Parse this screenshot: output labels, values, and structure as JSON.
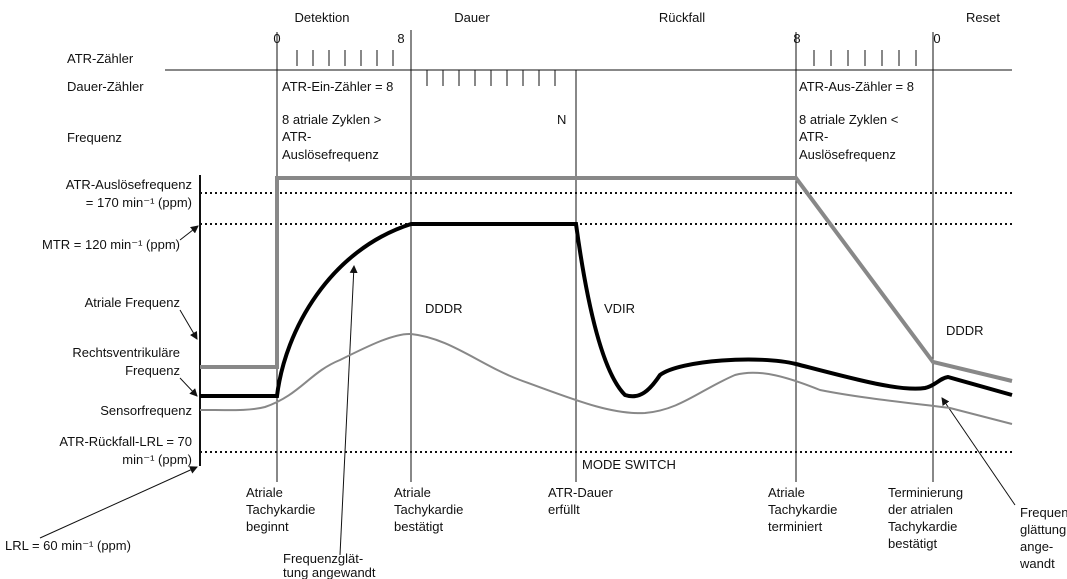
{
  "phases": [
    "Detektion",
    "Dauer",
    "Rückfall",
    "Reset"
  ],
  "counter_marks": [
    "0",
    "8",
    "8",
    "0"
  ],
  "rows": [
    "ATR-Zähler",
    "Dauer-Zähler",
    "Frequenz"
  ],
  "detection_box": {
    "counter": "ATR-Ein-Zähler = 8",
    "condition": [
      "8 atriale Zyklen >",
      "ATR-",
      "Auslösefrequenz"
    ]
  },
  "duration_end": "N",
  "reset_box": {
    "counter": "ATR-Aus-Zähler = 8",
    "condition": [
      "8 atriale Zyklen <",
      "ATR-",
      "Auslösefrequenz"
    ]
  },
  "left_labels": {
    "atr_trigger": [
      "ATR-Auslösefrequenz",
      "= 170 min⁻¹ (ppm)"
    ],
    "mtr": "MTR = 120 min⁻¹ (ppm)",
    "atrial": "Atriale Frequenz",
    "ventricular": [
      "Rechtsventrikuläre",
      "Frequenz"
    ],
    "sensor": "Sensorfrequenz",
    "fallback_lrl": [
      "ATR-Rückfall-LRL = 70",
      "min⁻¹ (ppm)"
    ],
    "lrl": "LRL = 60 min⁻¹ (ppm)"
  },
  "modes": [
    "DDDR",
    "VDIR",
    "DDDR",
    "MODE SWITCH"
  ],
  "events": [
    [
      "Atriale",
      "Tachykardie",
      "beginnt"
    ],
    [
      "Atriale",
      "Tachykardie",
      "bestätigt"
    ],
    [
      "ATR-Dauer",
      "erfüllt"
    ],
    [
      "Atriale",
      "Tachykardie",
      "terminiert"
    ],
    [
      "Terminierung",
      "der atrialen",
      "Tachykardie",
      "bestätigt"
    ],
    [
      "Frequenz-",
      "glättung",
      "ange-",
      "wandt"
    ],
    [
      "Frequenzglät-",
      "tung angewandt"
    ]
  ]
}
